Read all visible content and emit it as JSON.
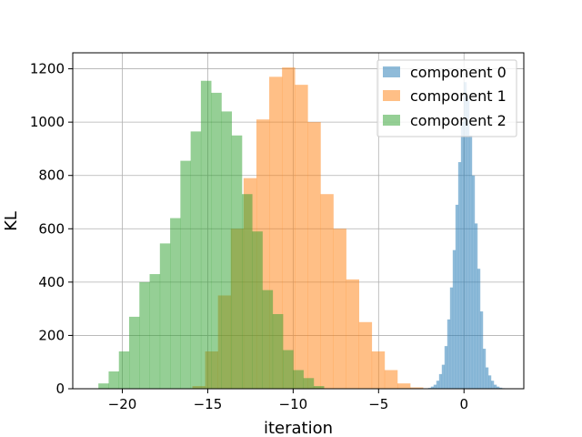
{
  "chart_data": {
    "type": "histogram",
    "xlabel": "iteration",
    "ylabel": "KL",
    "xlim": [
      -22.9,
      3.5
    ],
    "ylim": [
      0,
      1260
    ],
    "xticks": [
      -20,
      -15,
      -10,
      -5,
      0
    ],
    "yticks": [
      0,
      200,
      400,
      600,
      800,
      1000,
      1200
    ],
    "xtick_labels": [
      "−20",
      "−15",
      "−10",
      "−5",
      "0"
    ],
    "ytick_labels": [
      "0",
      "200",
      "400",
      "600",
      "800",
      "1000",
      "1200"
    ],
    "grid": true,
    "legend_position": "top-right",
    "series": [
      {
        "name": "component 0",
        "color": "#1f77b4",
        "bin_start": -2.1,
        "bin_width": 0.16,
        "values": [
          3,
          8,
          15,
          30,
          55,
          90,
          160,
          260,
          380,
          520,
          690,
          850,
          1000,
          1150,
          1100,
          950,
          800,
          620,
          450,
          290,
          150,
          80,
          50,
          30,
          15,
          8,
          4,
          2
        ]
      },
      {
        "name": "component 1",
        "color": "#ff7f0e",
        "bin_start": -15.9,
        "bin_width": 0.75,
        "values": [
          10,
          140,
          350,
          600,
          790,
          1010,
          1170,
          1205,
          1140,
          1000,
          730,
          600,
          410,
          250,
          140,
          70,
          20,
          5
        ]
      },
      {
        "name": "component 2",
        "color": "#2ca02c",
        "bin_start": -21.4,
        "bin_width": 0.6,
        "values": [
          20,
          65,
          140,
          270,
          400,
          430,
          545,
          640,
          855,
          965,
          1155,
          1110,
          1040,
          950,
          730,
          590,
          370,
          280,
          145,
          70,
          40,
          10
        ]
      }
    ]
  }
}
